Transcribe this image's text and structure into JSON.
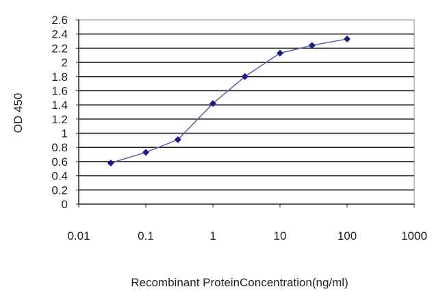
{
  "chart_data": {
    "type": "line",
    "title": "",
    "xlabel": "Recombinant ProteinConcentration(ng/ml)",
    "ylabel": "OD 450",
    "x_scale": "log",
    "xlim": [
      0.01,
      1000
    ],
    "ylim": [
      0,
      2.6
    ],
    "x_ticks": [
      "0.01",
      "0.1",
      "1",
      "10",
      "100",
      "1000"
    ],
    "y_ticks": [
      "0",
      "0.2",
      "0.4",
      "0.6",
      "0.8",
      "1",
      "1.2",
      "1.4",
      "1.6",
      "1.8",
      "2",
      "2.2",
      "2.4",
      "2.6"
    ],
    "grid": true,
    "series": [
      {
        "x": [
          0.03,
          0.1,
          0.3,
          1,
          3,
          10,
          30,
          100
        ],
        "y": [
          0.58,
          0.73,
          0.91,
          1.42,
          1.8,
          2.13,
          2.24,
          2.33
        ],
        "color": "#1a1a8c"
      }
    ]
  }
}
